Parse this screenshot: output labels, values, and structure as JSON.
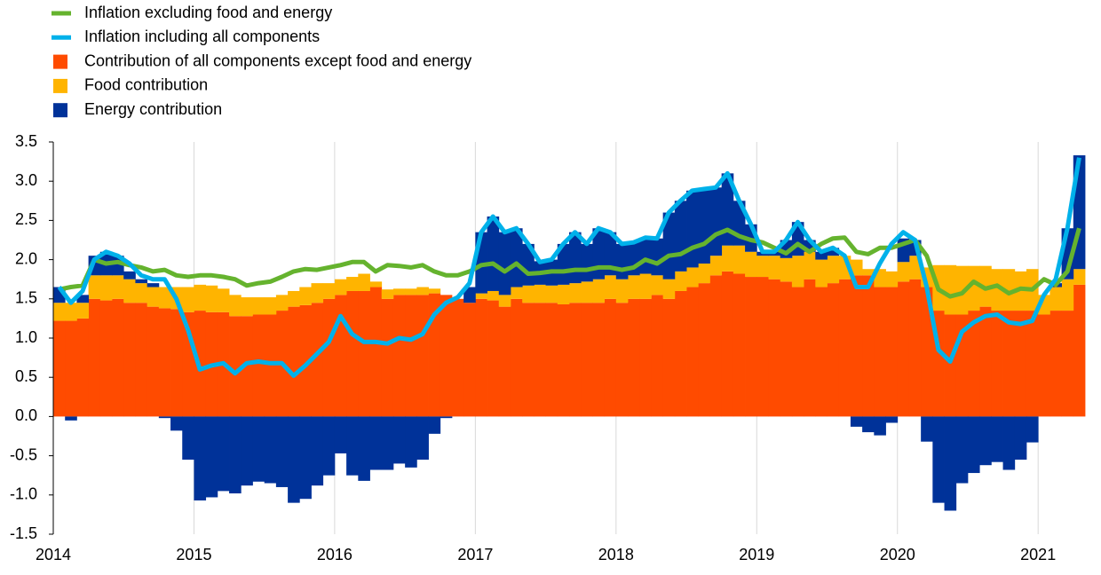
{
  "chart_data": {
    "type": "bar",
    "stacked": true,
    "categories": [
      "2014",
      null,
      null,
      null,
      null,
      null,
      null,
      null,
      null,
      null,
      null,
      null,
      "2015",
      null,
      null,
      null,
      null,
      null,
      null,
      null,
      null,
      null,
      null,
      null,
      "2016",
      null,
      null,
      null,
      null,
      null,
      null,
      null,
      null,
      null,
      null,
      null,
      "2017",
      null,
      null,
      null,
      null,
      null,
      null,
      null,
      null,
      null,
      null,
      null,
      "2018",
      null,
      null,
      null,
      null,
      null,
      null,
      null,
      null,
      null,
      null,
      null,
      "2019",
      null,
      null,
      null,
      null,
      null,
      null,
      null,
      null,
      null,
      null,
      null,
      "2020",
      null,
      null,
      null,
      null,
      null,
      null,
      null,
      null,
      null,
      null,
      null,
      "2021",
      null,
      null,
      null
    ],
    "ylim": [
      -1.5,
      3.5
    ],
    "yticks": [
      {
        "value": -1.5,
        "label": "-1.5"
      },
      {
        "value": -1,
        "label": "-1.0"
      },
      -0.5,
      {
        "value": 0,
        "label": "0.0"
      },
      0.5,
      {
        "value": 1,
        "label": "1.0"
      },
      1.5,
      {
        "value": 2,
        "label": "2.0"
      },
      2.5,
      {
        "value": 3,
        "label": "3.0"
      },
      3.5
    ],
    "grid": true,
    "series": [
      {
        "name": "Inflation excluding food and energy",
        "type": "line",
        "color": "#65b32e",
        "values": [
          1.62,
          1.65,
          1.67,
          2.0,
          1.95,
          1.97,
          1.93,
          1.9,
          1.85,
          1.87,
          1.8,
          1.78,
          1.8,
          1.8,
          1.78,
          1.75,
          1.67,
          1.7,
          1.72,
          1.78,
          1.85,
          1.88,
          1.87,
          1.9,
          1.93,
          1.97,
          1.97,
          1.85,
          1.93,
          1.92,
          1.9,
          1.93,
          1.85,
          1.8,
          1.8,
          1.85,
          1.93,
          1.95,
          1.85,
          1.95,
          1.82,
          1.83,
          1.85,
          1.85,
          1.87,
          1.87,
          1.9,
          1.9,
          1.87,
          1.9,
          2.0,
          1.95,
          2.05,
          2.07,
          2.15,
          2.2,
          2.32,
          2.38,
          2.3,
          2.25,
          2.22,
          2.15,
          2.08,
          2.2,
          2.1,
          2.2,
          2.27,
          2.28,
          2.1,
          2.07,
          2.15,
          2.15,
          2.2,
          2.25,
          2.05,
          1.62,
          1.53,
          1.57,
          1.72,
          1.63,
          1.67,
          1.57,
          1.63,
          1.62,
          1.75,
          1.68,
          1.85,
          2.4
        ]
      },
      {
        "name": "Inflation including all components",
        "type": "line",
        "color": "#00b1ea",
        "values": [
          1.65,
          1.45,
          1.6,
          2.0,
          2.1,
          2.05,
          1.95,
          1.8,
          1.75,
          1.75,
          1.5,
          1.1,
          0.6,
          0.65,
          0.68,
          0.55,
          0.68,
          0.7,
          0.68,
          0.68,
          0.52,
          0.65,
          0.8,
          0.95,
          1.28,
          1.05,
          0.95,
          0.95,
          0.93,
          1.0,
          0.98,
          1.05,
          1.3,
          1.45,
          1.52,
          1.7,
          2.35,
          2.55,
          2.35,
          2.4,
          2.2,
          1.97,
          2.0,
          2.2,
          2.35,
          2.2,
          2.4,
          2.35,
          2.2,
          2.22,
          2.28,
          2.27,
          2.6,
          2.75,
          2.88,
          2.9,
          2.92,
          3.1,
          2.75,
          2.45,
          2.1,
          2.1,
          2.25,
          2.48,
          2.25,
          2.1,
          2.15,
          2.05,
          1.65,
          1.65,
          1.95,
          2.2,
          2.35,
          2.25,
          1.65,
          0.85,
          0.7,
          1.08,
          1.2,
          1.28,
          1.3,
          1.2,
          1.18,
          1.22,
          1.55,
          1.75,
          2.4,
          3.3
        ]
      },
      {
        "name": "Contribution of all components except food and energy",
        "type": "bar",
        "color": "#ff4b00",
        "values": [
          1.22,
          1.22,
          1.25,
          1.5,
          1.48,
          1.5,
          1.45,
          1.45,
          1.4,
          1.38,
          1.37,
          1.33,
          1.35,
          1.33,
          1.33,
          1.28,
          1.28,
          1.3,
          1.3,
          1.35,
          1.4,
          1.42,
          1.45,
          1.5,
          1.55,
          1.6,
          1.6,
          1.65,
          1.5,
          1.55,
          1.55,
          1.55,
          1.57,
          1.55,
          1.5,
          1.45,
          1.5,
          1.48,
          1.4,
          1.5,
          1.45,
          1.45,
          1.45,
          1.43,
          1.45,
          1.45,
          1.45,
          1.5,
          1.45,
          1.5,
          1.5,
          1.55,
          1.5,
          1.6,
          1.65,
          1.7,
          1.8,
          1.85,
          1.82,
          1.78,
          1.78,
          1.75,
          1.72,
          1.65,
          1.75,
          1.65,
          1.7,
          1.75,
          1.8,
          1.8,
          1.65,
          1.65,
          1.72,
          1.75,
          1.65,
          1.35,
          1.3,
          1.3,
          1.35,
          1.4,
          1.35,
          1.35,
          1.35,
          1.35,
          1.3,
          1.35,
          1.35,
          1.68
        ]
      },
      {
        "name": "Food contribution",
        "type": "bar",
        "color": "#ffb400",
        "values": [
          0.23,
          0.23,
          0.2,
          0.3,
          0.32,
          0.3,
          0.3,
          0.25,
          0.25,
          0.27,
          0.28,
          0.32,
          0.33,
          0.34,
          0.3,
          0.27,
          0.24,
          0.22,
          0.22,
          0.2,
          0.2,
          0.23,
          0.25,
          0.2,
          0.2,
          0.18,
          0.22,
          0.07,
          0.12,
          0.08,
          0.08,
          0.1,
          0.06,
          0,
          0,
          0,
          0.07,
          0.12,
          0.15,
          0.15,
          0.22,
          0.23,
          0.22,
          0.25,
          0.25,
          0.27,
          0.3,
          0.3,
          0.3,
          0.3,
          0.32,
          0.25,
          0.25,
          0.25,
          0.25,
          0.25,
          0.25,
          0.33,
          0.36,
          0.32,
          0.27,
          0.3,
          0.3,
          0.4,
          0.35,
          0.35,
          0.35,
          0.3,
          0.2,
          0.08,
          0.23,
          0.2,
          0.25,
          0.3,
          0.25,
          0.58,
          0.63,
          0.62,
          0.57,
          0.52,
          0.53,
          0.53,
          0.5,
          0.53,
          0.25,
          0.3,
          0.4,
          0.2
        ]
      },
      {
        "name": "Energy contribution",
        "type": "bar",
        "color": "#003299",
        "values": [
          0.2,
          -0.05,
          0.1,
          0.25,
          0.3,
          0.25,
          0.1,
          0.05,
          0.05,
          -0.02,
          -0.18,
          -0.55,
          -1.07,
          -1.03,
          -0.95,
          -0.98,
          -0.88,
          -0.83,
          -0.85,
          -0.9,
          -1.1,
          -1.05,
          -0.88,
          -0.75,
          -0.47,
          -0.75,
          -0.82,
          -0.68,
          -0.68,
          -0.6,
          -0.65,
          -0.55,
          -0.22,
          -0.02,
          0,
          0.2,
          0.78,
          0.95,
          0.8,
          0.75,
          0.53,
          0.3,
          0.33,
          0.52,
          0.65,
          0.48,
          0.65,
          0.55,
          0.45,
          0.42,
          0.46,
          0.47,
          0.85,
          0.9,
          0.98,
          0.95,
          0.87,
          0.92,
          0.57,
          0.35,
          0.05,
          0.05,
          0.23,
          0.43,
          0.15,
          0.1,
          0.1,
          0,
          -0.13,
          -0.2,
          -0.24,
          -0.08,
          0.3,
          0.2,
          -0.32,
          -1.1,
          -1.2,
          -0.85,
          -0.72,
          -0.62,
          -0.58,
          -0.68,
          -0.55,
          -0.33,
          0,
          0.05,
          0.65,
          1.45
        ]
      }
    ]
  }
}
